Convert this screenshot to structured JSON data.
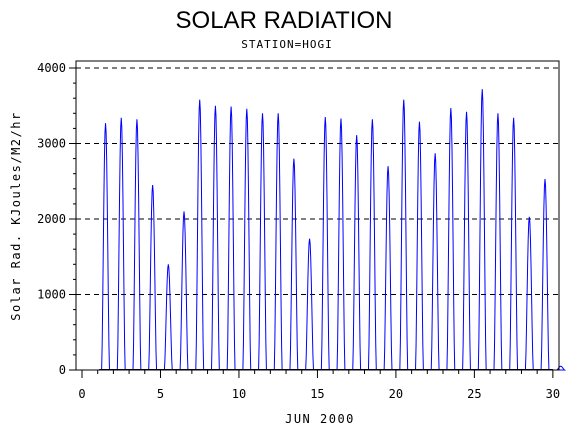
{
  "chart_data": {
    "type": "line",
    "title": "SOLAR RADIATION",
    "subtitle": "STATION=HOGI",
    "xlabel": "JUN 2000",
    "ylabel": "Solar Rad. KJoules/M2/hr",
    "xlim": [
      0,
      30.2
    ],
    "ylim": [
      0,
      4000
    ],
    "xticks": [
      0,
      5,
      10,
      15,
      20,
      25,
      30
    ],
    "yticks": [
      0,
      1000,
      2000,
      3000,
      4000
    ],
    "grid": "dashed horizontal at y ticks",
    "series": [
      {
        "color": "#0000ff",
        "daily_peaks": [
          3270,
          3340,
          3320,
          2450,
          1400,
          2100,
          3580,
          3500,
          3490,
          3460,
          3400,
          3400,
          2800,
          1740,
          3350,
          3330,
          3110,
          3320,
          2700,
          3580,
          3290,
          2870,
          3470,
          3420,
          3720,
          3400,
          3340,
          2030,
          2530,
          50
        ]
      },
      {
        "color": "#000000",
        "values_note": "",
        "baseline": 0
      }
    ]
  },
  "colors": {
    "series": "#0000ff",
    "baseline": "#000000",
    "axes": "#000000"
  }
}
